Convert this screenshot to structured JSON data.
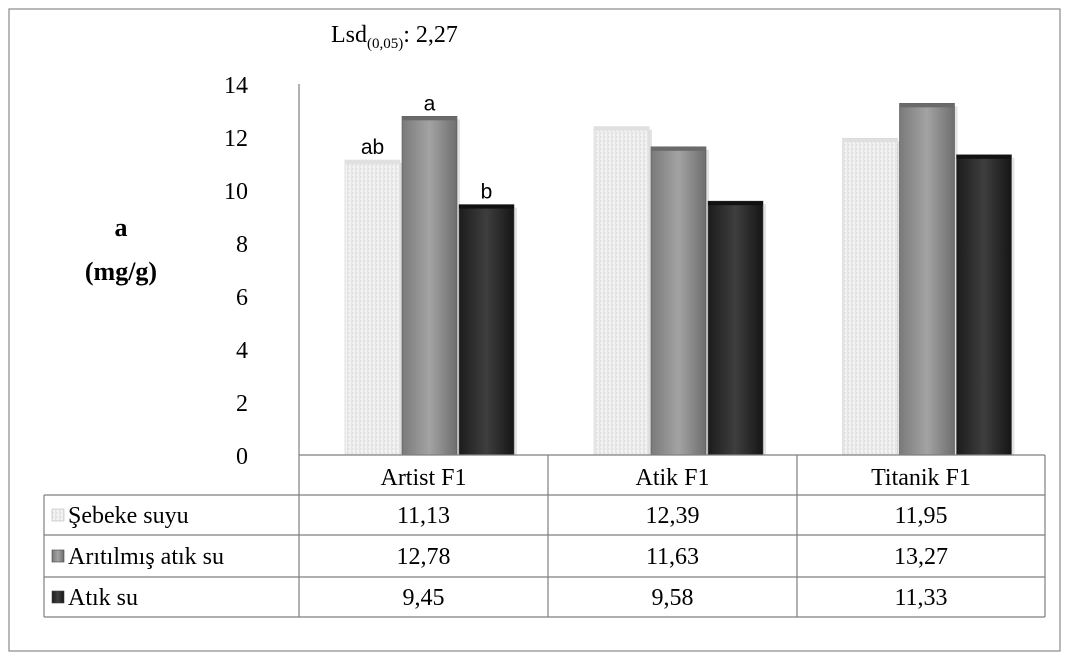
{
  "chart_data": {
    "type": "bar",
    "lsd_label": "Lsd",
    "lsd_sub": "(0,05)",
    "lsd_value": ": 2,27",
    "ylabel_line1": "a",
    "ylabel_line2": "(mg/g)",
    "ylim": [
      0,
      14
    ],
    "yticks": [
      0,
      2,
      4,
      6,
      8,
      10,
      12,
      14
    ],
    "categories": [
      "Artist F1",
      "Atik F1",
      "Titanik F1"
    ],
    "series": [
      {
        "name": "Şebeke suyu",
        "values": [
          11.13,
          12.39,
          11.95
        ],
        "labels": [
          "11,13",
          "12,39",
          "11,95"
        ],
        "color": "#f2f2f2"
      },
      {
        "name": "Arıtılmış atık su",
        "values": [
          12.78,
          11.63,
          13.27
        ],
        "labels": [
          "12,78",
          "11,63",
          "13,27"
        ],
        "color": "#8c8c8c"
      },
      {
        "name": "Atık su",
        "values": [
          9.45,
          9.58,
          11.33
        ],
        "labels": [
          "9,45",
          "9,58",
          "11,33"
        ],
        "color": "#2b2b2b"
      }
    ],
    "annotations": [
      {
        "category": 0,
        "series": 0,
        "text": "ab"
      },
      {
        "category": 0,
        "series": 1,
        "text": "a"
      },
      {
        "category": 0,
        "series": 2,
        "text": "b"
      }
    ],
    "grid": false,
    "legend": "data-table"
  }
}
